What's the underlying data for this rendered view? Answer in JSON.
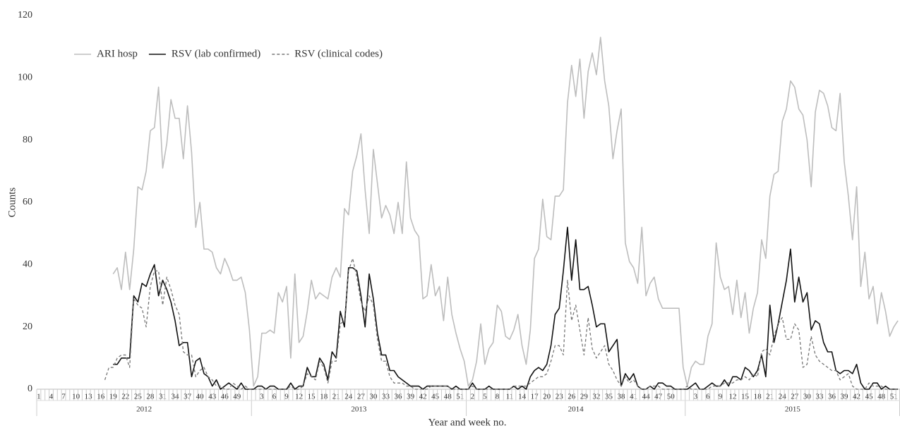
{
  "chart_data": {
    "type": "line",
    "x_label": "Year and week no.",
    "y_label": "Counts",
    "ylim": [
      0,
      120
    ],
    "yticks": [
      0,
      20,
      40,
      60,
      80,
      100,
      120
    ],
    "groups": [
      {
        "label": "2012",
        "weeks": [
          "1",
          null,
          null,
          "4",
          null,
          null,
          "7",
          null,
          null,
          "10",
          null,
          null,
          "13",
          null,
          null,
          "16",
          null,
          null,
          "19",
          null,
          null,
          "22",
          null,
          null,
          "25",
          null,
          null,
          "28",
          null,
          null,
          "31",
          null,
          null,
          "34",
          null,
          null,
          "37",
          null,
          null,
          "40",
          null,
          null,
          "43",
          null,
          null,
          "46",
          null,
          null,
          "49",
          null,
          null,
          null
        ]
      },
      {
        "label": "2013",
        "weeks": [
          null,
          null,
          "3",
          null,
          null,
          "6",
          null,
          null,
          "9",
          null,
          null,
          "12",
          null,
          null,
          "15",
          null,
          null,
          "18",
          null,
          null,
          "21",
          null,
          null,
          "24",
          null,
          null,
          "27",
          null,
          null,
          "30",
          null,
          null,
          "33",
          null,
          null,
          "36",
          null,
          null,
          "39",
          null,
          null,
          "42",
          null,
          null,
          "45",
          null,
          null,
          "48",
          null,
          null,
          "51",
          null
        ]
      },
      {
        "label": "2014",
        "weeks": [
          null,
          "2",
          null,
          null,
          "5",
          null,
          null,
          "8",
          null,
          null,
          "11",
          null,
          null,
          "14",
          null,
          null,
          "17",
          null,
          null,
          "20",
          null,
          null,
          "23",
          null,
          null,
          "26",
          null,
          null,
          "29",
          null,
          null,
          "32",
          null,
          null,
          "35",
          null,
          null,
          "38",
          null,
          null,
          "41",
          null,
          null,
          "44",
          null,
          null,
          "47",
          null,
          null,
          "50",
          null,
          null,
          null
        ]
      },
      {
        "label": "2015",
        "weeks": [
          null,
          null,
          "3",
          null,
          null,
          "6",
          null,
          null,
          "9",
          null,
          null,
          "12",
          null,
          null,
          "15",
          null,
          null,
          "18",
          null,
          null,
          "21",
          null,
          null,
          "24",
          null,
          null,
          "27",
          null,
          null,
          "30",
          null,
          null,
          "33",
          null,
          null,
          "36",
          null,
          null,
          "39",
          null,
          null,
          "42",
          null,
          null,
          "45",
          null,
          null,
          "48",
          null,
          null,
          "51",
          null
        ]
      }
    ],
    "series": [
      {
        "name": "ARI hosp",
        "color": "#bdbdbd",
        "dashed": false,
        "values": [
          null,
          null,
          null,
          null,
          null,
          null,
          null,
          null,
          null,
          null,
          null,
          null,
          null,
          null,
          null,
          null,
          null,
          null,
          37,
          39,
          32,
          44,
          32,
          45,
          65,
          64,
          70,
          83,
          84,
          97,
          71,
          79,
          93,
          87,
          87,
          74,
          91,
          76,
          52,
          60,
          45,
          45,
          44,
          39,
          37,
          42,
          39,
          35,
          35,
          36,
          31,
          19,
          1,
          4,
          18,
          18,
          19,
          18,
          31,
          28,
          33,
          10,
          37,
          15,
          17,
          25,
          35,
          29,
          31,
          30,
          29,
          36,
          39,
          36,
          58,
          56,
          70,
          75,
          82,
          64,
          50,
          77,
          66,
          55,
          59,
          56,
          50,
          60,
          50,
          73,
          55,
          51,
          49,
          29,
          30,
          40,
          30,
          33,
          22,
          36,
          24,
          18,
          13,
          9,
          1,
          3,
          9,
          21,
          8,
          13,
          15,
          27,
          25,
          17,
          16,
          19,
          24,
          14,
          8,
          19,
          42,
          45,
          61,
          49,
          48,
          62,
          62,
          64,
          92,
          104,
          94,
          106,
          87,
          102,
          108,
          101,
          113,
          99,
          91,
          74,
          83,
          90,
          47,
          41,
          39,
          34,
          52,
          30,
          34,
          36,
          29,
          26,
          26,
          26,
          26,
          26,
          7,
          1,
          7,
          9,
          8,
          8,
          17,
          21,
          47,
          36,
          32,
          33,
          24,
          35,
          23,
          31,
          18,
          26,
          31,
          48,
          42,
          62,
          69,
          70,
          86,
          90,
          99,
          97,
          90,
          88,
          80,
          65,
          89,
          96,
          95,
          91,
          84,
          83,
          95,
          73,
          62,
          48,
          65,
          33,
          44,
          29,
          33,
          21,
          31,
          25,
          17,
          20,
          22
        ]
      },
      {
        "name": "RSV (lab confirmed)",
        "color": "#111111",
        "dashed": false,
        "values": [
          null,
          null,
          null,
          null,
          null,
          null,
          null,
          null,
          null,
          null,
          null,
          null,
          null,
          null,
          null,
          null,
          null,
          null,
          8,
          8,
          10,
          10,
          10,
          30,
          28,
          34,
          33,
          37,
          40,
          30,
          35,
          32,
          28,
          22,
          14,
          15,
          15,
          4,
          9,
          10,
          5,
          4,
          1,
          3,
          0,
          1,
          2,
          1,
          0,
          2,
          0,
          0,
          0,
          1,
          1,
          0,
          1,
          1,
          0,
          0,
          0,
          2,
          0,
          1,
          1,
          7,
          4,
          4,
          10,
          8,
          3,
          12,
          10,
          25,
          20,
          39,
          39,
          38,
          30,
          20,
          37,
          29,
          18,
          11,
          11,
          6,
          6,
          4,
          3,
          2,
          1,
          1,
          1,
          0,
          1,
          1,
          1,
          1,
          1,
          1,
          0,
          1,
          0,
          0,
          0,
          2,
          0,
          0,
          0,
          1,
          0,
          0,
          0,
          0,
          0,
          1,
          0,
          1,
          0,
          4,
          6,
          7,
          6,
          8,
          14,
          24,
          26,
          38,
          52,
          35,
          48,
          32,
          32,
          33,
          27,
          20,
          21,
          21,
          12,
          14,
          16,
          1,
          5,
          3,
          5,
          1,
          0,
          0,
          1,
          0,
          2,
          2,
          1,
          1,
          0,
          0,
          0,
          0,
          1,
          2,
          0,
          0,
          1,
          2,
          1,
          1,
          3,
          1,
          4,
          4,
          3,
          7,
          6,
          4,
          6,
          11,
          4,
          27,
          15,
          21,
          28,
          35,
          45,
          28,
          36,
          28,
          31,
          19,
          22,
          21,
          15,
          12,
          12,
          6,
          5,
          6,
          6,
          5,
          8,
          2,
          0,
          0,
          2,
          2,
          0,
          1,
          0,
          0,
          0
        ]
      },
      {
        "name": "RSV (clinical codes)",
        "color": "#777777",
        "dashed": true,
        "values": [
          null,
          null,
          null,
          null,
          null,
          null,
          null,
          null,
          null,
          null,
          null,
          null,
          null,
          null,
          null,
          null,
          3,
          7,
          7,
          10,
          11,
          11,
          7,
          29,
          27,
          26,
          20,
          33,
          38,
          38,
          27,
          36,
          32,
          27,
          24,
          12,
          11,
          11,
          4,
          6,
          7,
          4,
          3,
          1,
          1,
          0,
          0,
          2,
          1,
          0,
          1,
          0,
          0,
          0,
          0,
          0,
          0,
          0,
          0,
          0,
          0,
          1,
          0,
          0,
          1,
          5,
          4,
          3,
          9,
          7,
          2,
          9,
          9,
          21,
          22,
          38,
          42,
          36,
          28,
          25,
          30,
          27,
          16,
          9,
          9,
          4,
          2,
          2,
          2,
          1,
          1,
          0,
          0,
          0,
          0,
          1,
          1,
          1,
          1,
          1,
          0,
          0,
          0,
          0,
          0,
          1,
          0,
          0,
          0,
          0,
          0,
          0,
          0,
          0,
          0,
          1,
          1,
          1,
          1,
          2,
          3,
          4,
          4,
          5,
          9,
          14,
          14,
          11,
          35,
          22,
          27,
          19,
          11,
          23,
          13,
          10,
          12,
          14,
          8,
          6,
          3,
          1,
          4,
          2,
          3,
          1,
          0,
          0,
          1,
          1,
          1,
          0,
          0,
          0,
          0,
          0,
          0,
          1,
          0,
          0,
          0,
          0,
          0,
          1,
          1,
          1,
          2,
          2,
          2,
          3,
          3,
          4,
          3,
          5,
          4,
          12,
          13,
          11,
          17,
          21,
          23,
          16,
          16,
          21,
          19,
          7,
          8,
          17,
          11,
          9,
          8,
          7,
          6,
          6,
          3,
          4,
          5,
          1,
          0,
          0,
          0,
          2,
          1,
          1,
          1,
          0,
          0,
          0,
          0
        ]
      }
    ]
  }
}
